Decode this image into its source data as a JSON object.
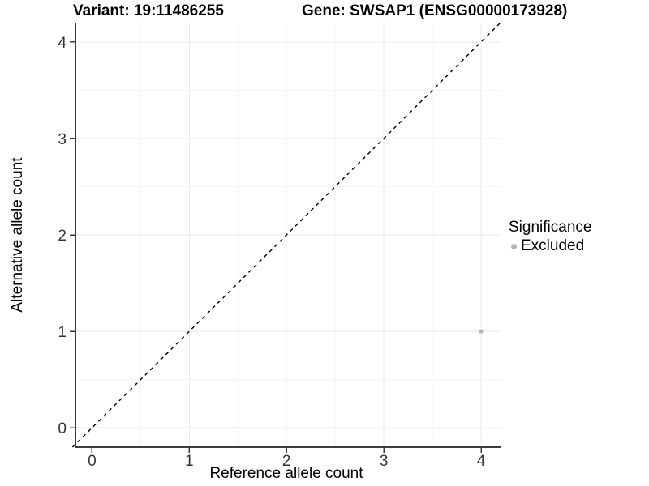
{
  "header": {
    "variant_title": "Variant: 19:11486255",
    "gene_title": "Gene: SWSAP1 (ENSG00000173928)"
  },
  "axes": {
    "xlabel": "Reference allele count",
    "ylabel": "Alternative allele count"
  },
  "legend": {
    "title": "Significance",
    "position": "right",
    "items": [
      {
        "label": "Excluded",
        "color": "#b5b5b5"
      }
    ]
  },
  "chart_data": {
    "type": "scatter",
    "title_left": "Variant: 19:11486255",
    "title_right": "Gene: SWSAP1 (ENSG00000173928)",
    "xlabel": "Reference allele count",
    "ylabel": "Alternative allele count",
    "xlim": [
      -0.17,
      4.2
    ],
    "ylim": [
      -0.2,
      4.2
    ],
    "x_ticks": [
      0,
      1,
      2,
      3,
      4
    ],
    "y_ticks": [
      0,
      1,
      2,
      3,
      4
    ],
    "x_minor_ticks": [
      0.5,
      1.5,
      2.5,
      3.5
    ],
    "y_minor_ticks": [
      0.5,
      1.5,
      2.5,
      3.5
    ],
    "grid": true,
    "legend_position": "right",
    "series": [
      {
        "name": "Excluded",
        "color": "#b5b5b5",
        "points": [
          {
            "x": 4,
            "y": 1
          }
        ]
      }
    ],
    "reference_line": {
      "kind": "identity",
      "style": "dashed",
      "color": "#000000",
      "from": [
        -0.2,
        -0.2
      ],
      "to": [
        4.2,
        4.2
      ]
    },
    "style_colors": {
      "axis_line": "#3c3c3c",
      "tick_label": "#333333",
      "grid_major": "#e8e8e8",
      "grid_minor": "#f4f4f4",
      "point": "#b5b5b5"
    }
  }
}
